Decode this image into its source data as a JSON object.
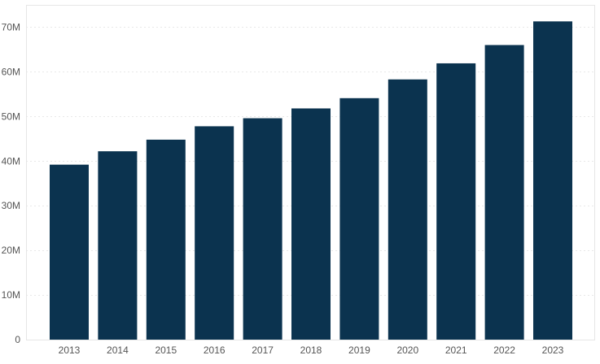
{
  "chart_data": {
    "type": "bar",
    "categories": [
      "2013",
      "2014",
      "2015",
      "2016",
      "2017",
      "2018",
      "2019",
      "2020",
      "2021",
      "2022",
      "2023"
    ],
    "values": [
      39.2,
      42.2,
      44.8,
      47.8,
      49.6,
      51.8,
      54.1,
      58.3,
      61.9,
      66.0,
      71.3
    ],
    "title": "",
    "xlabel": "",
    "ylabel": "",
    "ylim": [
      0,
      75
    ],
    "yticks": [
      0,
      10,
      20,
      30,
      40,
      50,
      60,
      70
    ],
    "ytick_labels": [
      "0",
      "10M",
      "20M",
      "30M",
      "40M",
      "50M",
      "60M",
      "70M"
    ],
    "grid": true,
    "legend": "none",
    "colors": {
      "bar": "#0b334f",
      "grid": "#e8e8e8",
      "frame": "#e6e6e6",
      "tick_label": "#555555"
    }
  }
}
